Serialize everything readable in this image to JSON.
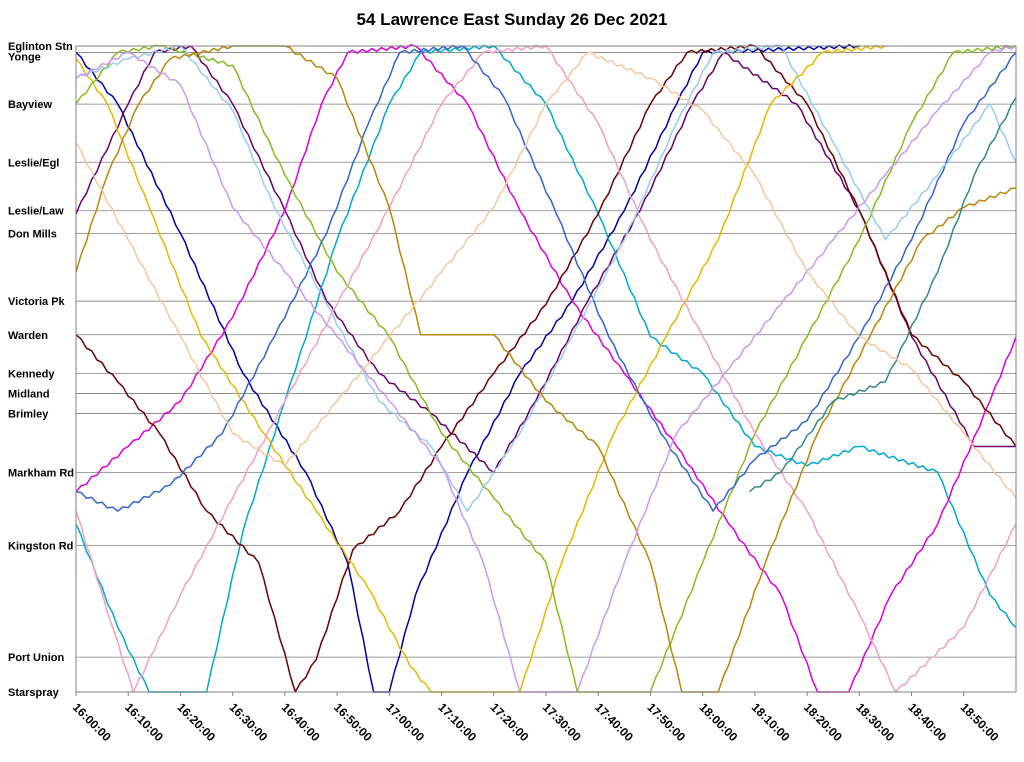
{
  "chart_data": {
    "type": "line",
    "title": "54 Lawrence East Sunday 26 Dec 2021",
    "xlabel": "",
    "ylabel": "",
    "x_range": [
      "16:00:00",
      "19:00:00"
    ],
    "x_ticks": [
      "16:00:00",
      "16:10:00",
      "16:20:00",
      "16:30:00",
      "16:40:00",
      "16:50:00",
      "17:00:00",
      "17:10:00",
      "17:20:00",
      "17:30:00",
      "17:40:00",
      "17:50:00",
      "18:00:00",
      "18:10:00",
      "18:20:00",
      "18:30:00",
      "18:40:00",
      "18:50:00"
    ],
    "stops": [
      {
        "name": "Eglinton Stn",
        "pos": 0.0
      },
      {
        "name": "Yonge",
        "pos": 0.01
      },
      {
        "name": "Bayview",
        "pos": 0.09
      },
      {
        "name": "Leslie/Egl",
        "pos": 0.18
      },
      {
        "name": "Leslie/Law",
        "pos": 0.255
      },
      {
        "name": "Don Mills",
        "pos": 0.29
      },
      {
        "name": "Victoria Pk",
        "pos": 0.395
      },
      {
        "name": "Warden",
        "pos": 0.447
      },
      {
        "name": "Kennedy",
        "pos": 0.507
      },
      {
        "name": "Midland",
        "pos": 0.538
      },
      {
        "name": "Brimley",
        "pos": 0.569
      },
      {
        "name": "Markham Rd",
        "pos": 0.66
      },
      {
        "name": "Kingston Rd",
        "pos": 0.773
      },
      {
        "name": "Port Union",
        "pos": 0.946
      },
      {
        "name": "Starspray",
        "pos": 1.0
      }
    ],
    "grid": true,
    "series": [
      {
        "color": "#0000a0",
        "points": [
          [
            "16:00:00",
            0.01
          ],
          [
            "16:08:00",
            0.09
          ],
          [
            "16:20:00",
            0.29
          ],
          [
            "16:32:00",
            0.507
          ],
          [
            "16:44:00",
            0.66
          ],
          [
            "16:52:00",
            0.8
          ],
          [
            "16:57:00",
            1.0
          ],
          [
            "17:00:00",
            1.0
          ],
          [
            "17:05:00",
            0.85
          ],
          [
            "17:15:00",
            0.66
          ],
          [
            "17:25:00",
            0.507
          ],
          [
            "17:35:00",
            0.395
          ],
          [
            "17:45:00",
            0.255
          ],
          [
            "17:55:00",
            0.09
          ],
          [
            "18:00:00",
            0.01
          ],
          [
            "18:30:00",
            0.0
          ]
        ]
      },
      {
        "color": "#6a006a",
        "points": [
          [
            "16:00:00",
            0.26
          ],
          [
            "16:10:00",
            0.09
          ],
          [
            "16:15:00",
            0.01
          ],
          [
            "16:22:00",
            0.0
          ],
          [
            "16:30:00",
            0.09
          ],
          [
            "16:40:00",
            0.255
          ],
          [
            "16:48:00",
            0.395
          ],
          [
            "16:58:00",
            0.507
          ],
          [
            "17:08:00",
            0.569
          ],
          [
            "17:20:00",
            0.66
          ],
          [
            "17:28:00",
            0.55
          ],
          [
            "17:38:00",
            0.395
          ],
          [
            "17:48:00",
            0.255
          ],
          [
            "17:58:00",
            0.09
          ],
          [
            "18:04:00",
            0.01
          ],
          [
            "18:18:00",
            0.09
          ],
          [
            "18:30:00",
            0.255
          ],
          [
            "18:40:00",
            0.45
          ],
          [
            "18:52:00",
            0.62
          ],
          [
            "19:00:00",
            0.62
          ]
        ]
      },
      {
        "color": "#00aacc",
        "points": [
          [
            "16:00:00",
            0.74
          ],
          [
            "16:08:00",
            0.9
          ],
          [
            "16:14:00",
            1.0
          ],
          [
            "16:25:00",
            1.0
          ],
          [
            "16:32:00",
            0.75
          ],
          [
            "16:40:00",
            0.55
          ],
          [
            "16:50:00",
            0.3
          ],
          [
            "17:00:00",
            0.09
          ],
          [
            "17:06:00",
            0.01
          ],
          [
            "17:20:00",
            0.0
          ],
          [
            "17:30:00",
            0.09
          ],
          [
            "17:40:00",
            0.26
          ],
          [
            "17:50:00",
            0.45
          ],
          [
            "18:00:00",
            0.507
          ],
          [
            "18:10:00",
            0.62
          ],
          [
            "18:20:00",
            0.65
          ],
          [
            "18:30:00",
            0.62
          ],
          [
            "18:45:00",
            0.66
          ],
          [
            "18:55:00",
            0.85
          ],
          [
            "19:00:00",
            0.9
          ]
        ]
      },
      {
        "color": "#dd00dd",
        "points": [
          [
            "16:00:00",
            0.69
          ],
          [
            "16:10:00",
            0.62
          ],
          [
            "16:20:00",
            0.55
          ],
          [
            "16:30:00",
            0.42
          ],
          [
            "16:40:00",
            0.255
          ],
          [
            "16:47:00",
            0.09
          ],
          [
            "16:52:00",
            0.01
          ],
          [
            "17:05:00",
            0.0
          ],
          [
            "17:15:00",
            0.09
          ],
          [
            "17:25:00",
            0.255
          ],
          [
            "17:35:00",
            0.395
          ],
          [
            "17:45:00",
            0.507
          ],
          [
            "17:55:00",
            0.62
          ],
          [
            "18:05:00",
            0.74
          ],
          [
            "18:15:00",
            0.85
          ],
          [
            "18:22:00",
            1.0
          ],
          [
            "18:28:00",
            1.0
          ],
          [
            "18:36:00",
            0.85
          ],
          [
            "18:45:00",
            0.74
          ],
          [
            "18:55:00",
            0.55
          ],
          [
            "19:00:00",
            0.45
          ]
        ]
      },
      {
        "color": "#6b0000",
        "points": [
          [
            "16:00:00",
            0.447
          ],
          [
            "16:08:00",
            0.52
          ],
          [
            "16:16:00",
            0.6
          ],
          [
            "16:25:00",
            0.72
          ],
          [
            "16:35:00",
            0.8
          ],
          [
            "16:42:00",
            1.0
          ],
          [
            "16:46:00",
            0.95
          ],
          [
            "16:53:00",
            0.78
          ],
          [
            "17:02:00",
            0.72
          ],
          [
            "17:10:00",
            0.62
          ],
          [
            "17:20:00",
            0.507
          ],
          [
            "17:30:00",
            0.4
          ],
          [
            "17:40:00",
            0.26
          ],
          [
            "17:50:00",
            0.09
          ],
          [
            "17:57:00",
            0.01
          ],
          [
            "18:10:00",
            0.0
          ],
          [
            "18:20:00",
            0.09
          ],
          [
            "18:30:00",
            0.255
          ],
          [
            "18:40:00",
            0.447
          ],
          [
            "18:50:00",
            0.52
          ],
          [
            "19:00:00",
            0.62
          ]
        ]
      },
      {
        "color": "#e6b800",
        "points": [
          [
            "16:00:00",
            0.02
          ],
          [
            "16:06:00",
            0.09
          ],
          [
            "16:14:00",
            0.25
          ],
          [
            "16:24:00",
            0.45
          ],
          [
            "16:36:00",
            0.6
          ],
          [
            "16:46:00",
            0.72
          ],
          [
            "16:56:00",
            0.84
          ],
          [
            "17:04:00",
            0.96
          ],
          [
            "17:08:00",
            1.0
          ],
          [
            "17:25:00",
            1.0
          ],
          [
            "17:33:00",
            0.8
          ],
          [
            "17:43:00",
            0.6
          ],
          [
            "17:53:00",
            0.45
          ],
          [
            "18:03:00",
            0.3
          ],
          [
            "18:13:00",
            0.09
          ],
          [
            "18:23:00",
            0.01
          ],
          [
            "18:35:00",
            0.0
          ]
        ]
      },
      {
        "color": "#88bb22",
        "points": [
          [
            "16:00:00",
            0.09
          ],
          [
            "16:08:00",
            0.01
          ],
          [
            "16:16:00",
            0.0
          ],
          [
            "16:30:00",
            0.03
          ],
          [
            "16:40:00",
            0.2
          ],
          [
            "16:50:00",
            0.35
          ],
          [
            "17:00:00",
            0.45
          ],
          [
            "17:10:00",
            0.6
          ],
          [
            "17:20:00",
            0.7
          ],
          [
            "17:30:00",
            0.8
          ],
          [
            "17:36:00",
            1.0
          ],
          [
            "17:50:00",
            1.0
          ],
          [
            "18:00:00",
            0.8
          ],
          [
            "18:10:00",
            0.6
          ],
          [
            "18:20:00",
            0.45
          ],
          [
            "18:30:00",
            0.3
          ],
          [
            "18:40:00",
            0.12
          ],
          [
            "18:48:00",
            0.01
          ],
          [
            "19:00:00",
            0.0
          ]
        ]
      },
      {
        "color": "#f0a0c8",
        "points": [
          [
            "16:00:00",
            0.72
          ],
          [
            "16:07:00",
            0.9
          ],
          [
            "16:11:00",
            1.0
          ],
          [
            "16:20:00",
            0.85
          ],
          [
            "16:30:00",
            0.7
          ],
          [
            "16:40:00",
            0.55
          ],
          [
            "16:50:00",
            0.4
          ],
          [
            "17:00:00",
            0.25
          ],
          [
            "17:10:00",
            0.09
          ],
          [
            "17:18:00",
            0.01
          ],
          [
            "17:30:00",
            0.0
          ],
          [
            "17:40:00",
            0.12
          ],
          [
            "17:50:00",
            0.3
          ],
          [
            "18:00:00",
            0.45
          ],
          [
            "18:10:00",
            0.6
          ],
          [
            "18:20:00",
            0.72
          ],
          [
            "18:30:00",
            0.88
          ],
          [
            "18:37:00",
            1.0
          ],
          [
            "18:50:00",
            0.9
          ],
          [
            "19:00:00",
            0.74
          ]
        ]
      },
      {
        "color": "#3366cc",
        "points": [
          [
            "16:00:00",
            0.69
          ],
          [
            "16:08:00",
            0.72
          ],
          [
            "16:18:00",
            0.68
          ],
          [
            "16:28:00",
            0.6
          ],
          [
            "16:38:00",
            0.45
          ],
          [
            "16:48:00",
            0.29
          ],
          [
            "16:56:00",
            0.12
          ],
          [
            "17:02:00",
            0.01
          ],
          [
            "17:14:00",
            0.0
          ],
          [
            "17:22:00",
            0.08
          ],
          [
            "17:32:00",
            0.26
          ],
          [
            "17:42:00",
            0.45
          ],
          [
            "17:52:00",
            0.6
          ],
          [
            "18:02:00",
            0.72
          ],
          [
            "18:10:00",
            0.64
          ],
          [
            "18:20:00",
            0.58
          ],
          [
            "18:30:00",
            0.45
          ],
          [
            "18:40:00",
            0.3
          ],
          [
            "18:50:00",
            0.12
          ],
          [
            "19:00:00",
            0.01
          ]
        ]
      },
      {
        "color": "#99ccee",
        "points": [
          [
            "16:00:00",
            0.05
          ],
          [
            "16:10:00",
            0.02
          ],
          [
            "16:20:00",
            0.0
          ],
          [
            "16:30:00",
            0.1
          ],
          [
            "16:38:00",
            0.25
          ],
          [
            "16:48:00",
            0.4
          ],
          [
            "16:58:00",
            0.55
          ],
          [
            "17:08:00",
            0.62
          ],
          [
            "17:15:00",
            0.72
          ],
          [
            "17:25:00",
            0.6
          ],
          [
            "17:35:00",
            0.45
          ],
          [
            "17:45:00",
            0.3
          ],
          [
            "17:55:00",
            0.12
          ],
          [
            "18:02:00",
            0.01
          ],
          [
            "18:15:00",
            0.0
          ],
          [
            "18:25:00",
            0.15
          ],
          [
            "18:35:00",
            0.3
          ],
          [
            "18:45:00",
            0.2
          ],
          [
            "18:55:00",
            0.09
          ],
          [
            "19:00:00",
            0.18
          ]
        ]
      },
      {
        "color": "#b8860b",
        "points": [
          [
            "16:00:00",
            0.35
          ],
          [
            "16:06:00",
            0.2
          ],
          [
            "16:12:00",
            0.09
          ],
          [
            "16:18:00",
            0.02
          ],
          [
            "16:30:00",
            0.0
          ],
          [
            "16:40:00",
            0.0
          ],
          [
            "16:50:00",
            0.05
          ],
          [
            "17:00:00",
            0.25
          ],
          [
            "17:06:00",
            0.447
          ],
          [
            "17:20:00",
            0.447
          ],
          [
            "17:30:00",
            0.55
          ],
          [
            "17:40:00",
            0.62
          ],
          [
            "17:50:00",
            0.8
          ],
          [
            "17:56:00",
            1.0
          ],
          [
            "18:03:00",
            1.0
          ],
          [
            "18:12:00",
            0.8
          ],
          [
            "18:22:00",
            0.6
          ],
          [
            "18:32:00",
            0.45
          ],
          [
            "18:42:00",
            0.3
          ],
          [
            "18:50:00",
            0.25
          ],
          [
            "19:00:00",
            0.22
          ]
        ]
      },
      {
        "color": "#cc99ee",
        "points": [
          [
            "16:00:00",
            0.05
          ],
          [
            "16:10:00",
            0.01
          ],
          [
            "16:20:00",
            0.06
          ],
          [
            "16:30:00",
            0.25
          ],
          [
            "16:40:00",
            0.35
          ],
          [
            "16:50:00",
            0.45
          ],
          [
            "17:00:00",
            0.55
          ],
          [
            "17:10:00",
            0.65
          ],
          [
            "17:18:00",
            0.8
          ],
          [
            "17:25:00",
            1.0
          ],
          [
            "17:36:00",
            1.0
          ],
          [
            "17:45:00",
            0.8
          ],
          [
            "17:55:00",
            0.6
          ],
          [
            "18:05:00",
            0.5
          ],
          [
            "18:15:00",
            0.4
          ],
          [
            "18:25:00",
            0.3
          ],
          [
            "18:35:00",
            0.2
          ],
          [
            "18:45:00",
            0.1
          ],
          [
            "18:55:00",
            0.01
          ],
          [
            "19:00:00",
            0.0
          ]
        ]
      },
      {
        "color": "#338888",
        "points": [
          [
            "18:09:00",
            0.69
          ],
          [
            "18:15:00",
            0.66
          ],
          [
            "18:25:00",
            0.55
          ],
          [
            "18:35:00",
            0.52
          ],
          [
            "18:45:00",
            0.35
          ],
          [
            "18:52:00",
            0.2
          ],
          [
            "19:00:00",
            0.08
          ]
        ]
      },
      {
        "color": "#f4c8a0",
        "points": [
          [
            "16:00:00",
            0.15
          ],
          [
            "16:10:00",
            0.3
          ],
          [
            "16:20:00",
            0.45
          ],
          [
            "16:30:00",
            0.6
          ],
          [
            "16:40:00",
            0.65
          ],
          [
            "16:50:00",
            0.55
          ],
          [
            "17:00:00",
            0.45
          ],
          [
            "17:10:00",
            0.35
          ],
          [
            "17:20:00",
            0.25
          ],
          [
            "17:30:00",
            0.09
          ],
          [
            "17:38:00",
            0.01
          ],
          [
            "17:50:00",
            0.05
          ],
          [
            "18:00:00",
            0.1
          ],
          [
            "18:10:00",
            0.2
          ],
          [
            "18:20:00",
            0.35
          ],
          [
            "18:30:00",
            0.45
          ],
          [
            "18:40:00",
            0.5
          ],
          [
            "18:50:00",
            0.6
          ],
          [
            "19:00:00",
            0.7
          ]
        ]
      }
    ]
  }
}
